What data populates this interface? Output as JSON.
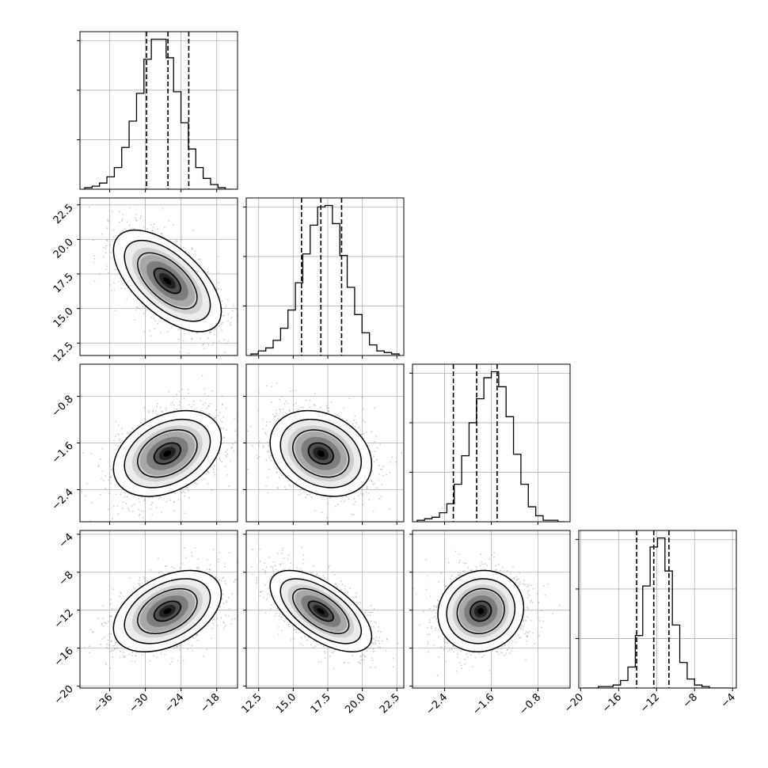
{
  "chart_data": {
    "type": "corner",
    "dimensions": 4,
    "hist_bins": 20,
    "quantile_lines": "dashed",
    "grid": true,
    "axes": [
      {
        "range": [
          -41.0,
          -14.5
        ],
        "ticks": [
          -36,
          -30,
          -24,
          -18
        ],
        "tick_labels": [
          "−36",
          "−30",
          "−24",
          "−18"
        ]
      },
      {
        "range": [
          11.6,
          23.0
        ],
        "ticks": [
          12.5,
          15.0,
          17.5,
          20.0,
          22.5
        ],
        "tick_labels": [
          "12.5",
          "15.0",
          "17.5",
          "20.0",
          "22.5"
        ]
      },
      {
        "range": [
          -2.95,
          -0.25
        ],
        "ticks": [
          -2.4,
          -1.6,
          -0.8
        ],
        "tick_labels": [
          "−2.4",
          "−1.6",
          "−0.8"
        ]
      },
      {
        "range": [
          -20.2,
          -3.6
        ],
        "ticks": [
          -20,
          -16,
          -12,
          -8,
          -4
        ],
        "tick_labels": [
          "−20",
          "−16",
          "−12",
          "−8",
          "−4"
        ]
      }
    ],
    "marginals": [
      {
        "counts": [
          1,
          2,
          4,
          8,
          14,
          27,
          44,
          62,
          84,
          97,
          97,
          85,
          63,
          43,
          26,
          14,
          7,
          3,
          1,
          0
        ],
        "quantiles": [
          -29.8,
          -26.2,
          -22.7
        ]
      },
      {
        "counts": [
          1,
          3,
          5,
          10,
          18,
          30,
          48,
          67,
          86,
          98,
          99,
          87,
          66,
          45,
          27,
          15,
          7,
          3,
          2,
          1
        ],
        "quantiles": [
          15.6,
          17.0,
          18.5
        ]
      },
      {
        "counts": [
          1,
          2,
          3,
          6,
          12,
          25,
          44,
          66,
          82,
          96,
          100,
          90,
          70,
          45,
          25,
          10,
          4,
          1,
          1,
          0
        ],
        "quantiles": [
          -2.25,
          -1.85,
          -1.5
        ]
      },
      {
        "counts": [
          0,
          0,
          1,
          1,
          2,
          5,
          14,
          35,
          68,
          94,
          100,
          78,
          42,
          17,
          6,
          2,
          1,
          0,
          0,
          0
        ],
        "quantiles": [
          -14.1,
          -12.3,
          -10.7
        ]
      }
    ],
    "pairs": [
      {
        "row": 1,
        "col": 0,
        "center": [
          -26.3,
          17.0
        ],
        "sigma": [
          3.7,
          1.5
        ],
        "corr": -0.6
      },
      {
        "row": 2,
        "col": 0,
        "center": [
          -26.3,
          -1.78
        ],
        "sigma": [
          3.7,
          0.3
        ],
        "corr": 0.35
      },
      {
        "row": 2,
        "col": 1,
        "center": [
          17.0,
          -1.78
        ],
        "sigma": [
          1.5,
          0.3
        ],
        "corr": -0.25
      },
      {
        "row": 3,
        "col": 0,
        "center": [
          -26.3,
          -12.1
        ],
        "sigma": [
          3.7,
          1.75
        ],
        "corr": 0.42
      },
      {
        "row": 3,
        "col": 1,
        "center": [
          17.0,
          -12.1
        ],
        "sigma": [
          1.5,
          1.75
        ],
        "corr": -0.62
      },
      {
        "row": 3,
        "col": 2,
        "center": [
          -1.78,
          -12.1
        ],
        "sigma": [
          0.3,
          1.75
        ],
        "corr": 0.08
      }
    ]
  }
}
